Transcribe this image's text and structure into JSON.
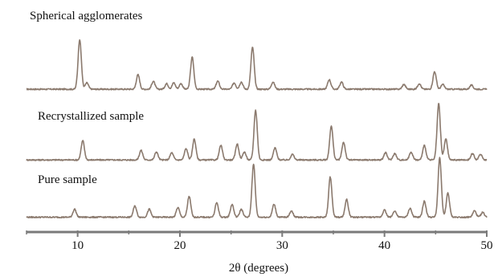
{
  "chart_data": {
    "type": "line",
    "title": "",
    "xlabel": "2θ (degrees)",
    "ylabel": "",
    "xlim": [
      5,
      50
    ],
    "x_ticks": [
      "10",
      "20",
      "30",
      "40",
      "50"
    ],
    "tick_values": [
      10,
      20,
      30,
      40,
      50
    ],
    "grid": false,
    "legend": "none",
    "line_color": "#8b7a6e",
    "series": [
      {
        "name": "Spherical agglomerates",
        "baseline": 3,
        "peaks": [
          {
            "x": 10.2,
            "h": 62
          },
          {
            "x": 10.9,
            "h": 8
          },
          {
            "x": 15.9,
            "h": 18
          },
          {
            "x": 17.4,
            "h": 10
          },
          {
            "x": 18.7,
            "h": 7
          },
          {
            "x": 19.4,
            "h": 8
          },
          {
            "x": 20.1,
            "h": 7
          },
          {
            "x": 21.2,
            "h": 40
          },
          {
            "x": 23.7,
            "h": 10
          },
          {
            "x": 25.3,
            "h": 8
          },
          {
            "x": 26.0,
            "h": 9
          },
          {
            "x": 27.1,
            "h": 52
          },
          {
            "x": 29.1,
            "h": 9
          },
          {
            "x": 34.6,
            "h": 12
          },
          {
            "x": 35.8,
            "h": 9
          },
          {
            "x": 41.9,
            "h": 6
          },
          {
            "x": 43.4,
            "h": 7
          },
          {
            "x": 44.9,
            "h": 22
          },
          {
            "x": 45.7,
            "h": 6
          },
          {
            "x": 48.5,
            "h": 5
          }
        ]
      },
      {
        "name": "Recrystallized sample",
        "baseline": 6,
        "peaks": [
          {
            "x": 10.5,
            "h": 24
          },
          {
            "x": 16.2,
            "h": 12
          },
          {
            "x": 17.7,
            "h": 10
          },
          {
            "x": 19.2,
            "h": 9
          },
          {
            "x": 20.6,
            "h": 14
          },
          {
            "x": 21.4,
            "h": 26
          },
          {
            "x": 24.0,
            "h": 18
          },
          {
            "x": 25.6,
            "h": 20
          },
          {
            "x": 26.3,
            "h": 10
          },
          {
            "x": 27.4,
            "h": 62
          },
          {
            "x": 29.3,
            "h": 15
          },
          {
            "x": 31.0,
            "h": 7
          },
          {
            "x": 34.8,
            "h": 42
          },
          {
            "x": 36.0,
            "h": 22
          },
          {
            "x": 40.1,
            "h": 9
          },
          {
            "x": 41.0,
            "h": 8
          },
          {
            "x": 42.6,
            "h": 10
          },
          {
            "x": 43.9,
            "h": 18
          },
          {
            "x": 45.3,
            "h": 70
          },
          {
            "x": 46.0,
            "h": 26
          },
          {
            "x": 48.6,
            "h": 8
          },
          {
            "x": 49.4,
            "h": 7
          }
        ]
      },
      {
        "name": "Pure sample",
        "baseline": 5,
        "peaks": [
          {
            "x": 9.7,
            "h": 10
          },
          {
            "x": 15.6,
            "h": 14
          },
          {
            "x": 17.0,
            "h": 10
          },
          {
            "x": 19.8,
            "h": 12
          },
          {
            "x": 20.9,
            "h": 26
          },
          {
            "x": 23.6,
            "h": 18
          },
          {
            "x": 25.1,
            "h": 16
          },
          {
            "x": 26.0,
            "h": 10
          },
          {
            "x": 27.2,
            "h": 66
          },
          {
            "x": 29.2,
            "h": 16
          },
          {
            "x": 30.9,
            "h": 8
          },
          {
            "x": 34.7,
            "h": 50
          },
          {
            "x": 36.3,
            "h": 22
          },
          {
            "x": 40.0,
            "h": 9
          },
          {
            "x": 41.0,
            "h": 8
          },
          {
            "x": 42.5,
            "h": 11
          },
          {
            "x": 43.9,
            "h": 20
          },
          {
            "x": 45.4,
            "h": 74
          },
          {
            "x": 46.2,
            "h": 30
          },
          {
            "x": 48.8,
            "h": 8
          },
          {
            "x": 49.6,
            "h": 6
          }
        ]
      }
    ]
  }
}
